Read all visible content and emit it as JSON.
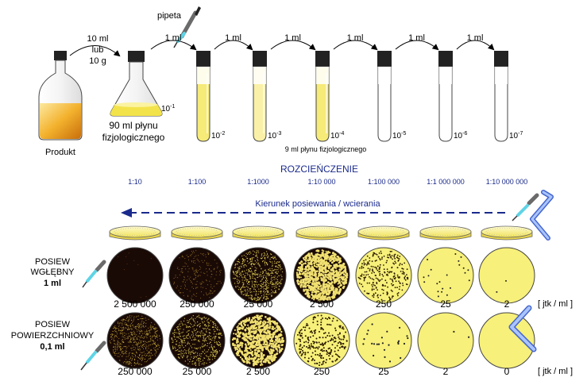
{
  "top": {
    "pipette_label": "pipeta",
    "bottle_label": "Produkt",
    "transfer_first": [
      "10 ml",
      "lub",
      "10 g"
    ],
    "transfer_step": "1 ml",
    "flask_label": [
      "90 ml płynu",
      "fizjologicznego"
    ],
    "flask_dilution": "10",
    "flask_exp": "-1",
    "tubes": [
      {
        "base": "10",
        "exp": "-2"
      },
      {
        "base": "10",
        "exp": "-3"
      },
      {
        "base": "10",
        "exp": "-4"
      },
      {
        "base": "10",
        "exp": "-5"
      },
      {
        "base": "10",
        "exp": "-6"
      },
      {
        "base": "10",
        "exp": "-7"
      }
    ],
    "tube_note": "9 ml płynu fizjologicznego"
  },
  "dilution": {
    "heading": "ROZCIEŃCZENIE",
    "ratios": [
      "1:10",
      "1:100",
      "1:1000",
      "1:10 000",
      "1:100 000",
      "1:1 000 000",
      "1:10 000 000"
    ]
  },
  "direction_label": "Kierunek posiewania / wcierania",
  "row_pour": {
    "label": [
      "POSIEW",
      "WGŁĘBNY",
      "1 ml"
    ],
    "counts": [
      "2 500 000",
      "250 000",
      "25 000",
      "2 500",
      "250",
      "25",
      "2"
    ],
    "unit": "[ jtk / ml ]"
  },
  "row_surface": {
    "label": [
      "POSIEW",
      "POWIERZCHNIOWY",
      "0,1 ml"
    ],
    "counts": [
      "250 000",
      "25 000",
      "2 500",
      "250",
      "25",
      "2",
      "0"
    ],
    "unit": "[ jtk / ml ]"
  },
  "colors": {
    "culture_yellow": "#f7f07a",
    "liquid_amber": "#f0a820",
    "dark_plate": "#1a0a06",
    "accent_blue": "#1a2a8c",
    "pipette_cyan": "#66d8e8"
  }
}
